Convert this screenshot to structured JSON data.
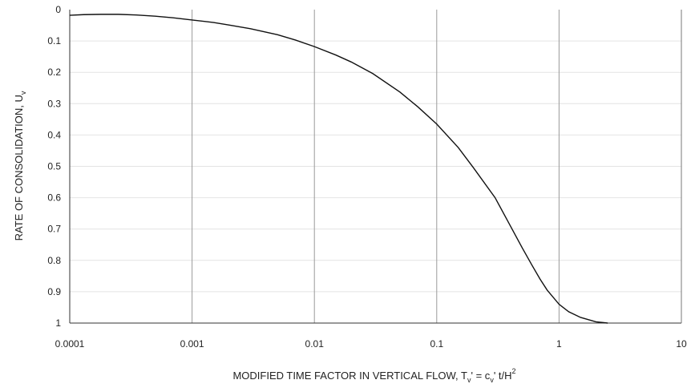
{
  "chart_data": {
    "type": "line",
    "xscale": "log",
    "xlim": [
      0.0001,
      10
    ],
    "ylim": [
      0,
      1
    ],
    "y_inverted": true,
    "xticks": [
      "0.0001",
      "0.001",
      "0.01",
      "0.1",
      "1",
      "10"
    ],
    "yticks": [
      "0",
      "0.1",
      "0.2",
      "0.3",
      "0.4",
      "0.5",
      "0.6",
      "0.7",
      "0.8",
      "0.9",
      "1"
    ],
    "xlabel": {
      "prefix": "MODIFIED TIME FACTOR IN VERTICAL FLOW, T",
      "sub1": "v",
      "mid": "' = c",
      "sub2": "v",
      "post": "' t/H",
      "sup": "2"
    },
    "ylabel": {
      "text": "RATE OF CONSOLIDATION, U",
      "sub": "v"
    },
    "grid": {
      "vertical": true,
      "horizontal": true
    },
    "series": [
      {
        "x": [
          0.0001,
          0.00013,
          0.00018,
          0.00025,
          0.00035,
          0.0005,
          0.0007,
          0.001,
          0.0015,
          0.002,
          0.003,
          0.005,
          0.007,
          0.01,
          0.015,
          0.02,
          0.03,
          0.05,
          0.07,
          0.1,
          0.15,
          0.2,
          0.3,
          0.4,
          0.5,
          0.6,
          0.7,
          0.8,
          1.0,
          1.2,
          1.5,
          2.0,
          2.5
        ],
        "y": [
          0.018,
          0.016,
          0.015,
          0.015,
          0.017,
          0.021,
          0.026,
          0.033,
          0.041,
          0.049,
          0.061,
          0.08,
          0.097,
          0.118,
          0.145,
          0.167,
          0.204,
          0.263,
          0.31,
          0.365,
          0.44,
          0.505,
          0.6,
          0.69,
          0.76,
          0.815,
          0.86,
          0.895,
          0.94,
          0.964,
          0.982,
          0.996,
          1.0
        ],
        "color": "#111111"
      }
    ]
  }
}
